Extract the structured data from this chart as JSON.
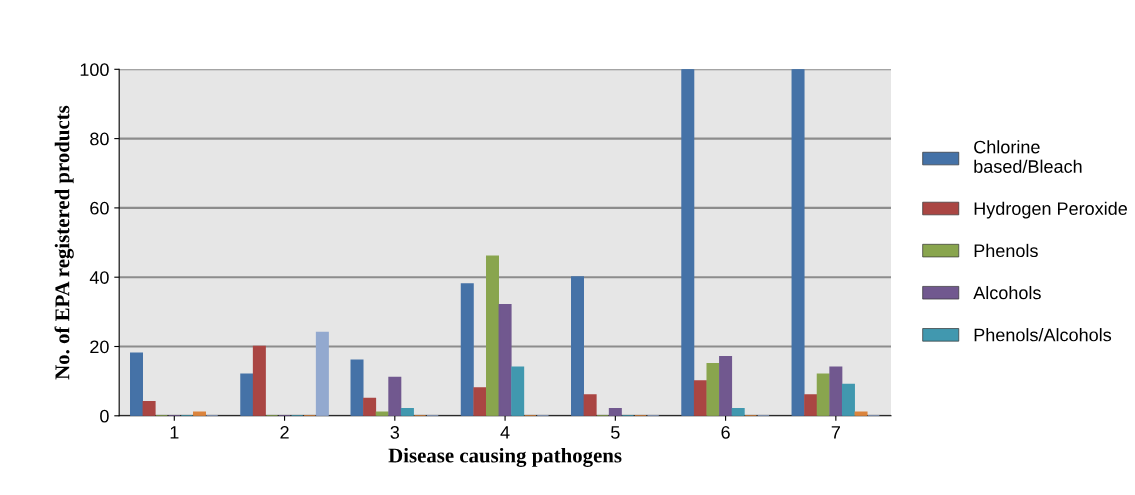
{
  "chart_data": {
    "type": "bar",
    "xlabel": "Disease causing pathogens",
    "ylabel": "No. of EPA registered products",
    "categories": [
      "1",
      "2",
      "3",
      "4",
      "5",
      "6",
      "7"
    ],
    "series": [
      {
        "name": "Chlorine based/Bleach",
        "color": "#4572a7",
        "values": [
          18,
          12,
          16,
          38,
          40,
          100,
          100
        ]
      },
      {
        "name": "Hydrogen Peroxide",
        "color": "#aa4643",
        "values": [
          4,
          20,
          5,
          8,
          6,
          10,
          6
        ]
      },
      {
        "name": "Phenols",
        "color": "#89a54e",
        "values": [
          0,
          0,
          1,
          46,
          0,
          15,
          12
        ]
      },
      {
        "name": "Alcohols",
        "color": "#71588f",
        "values": [
          0,
          0,
          11,
          32,
          2,
          17,
          14
        ]
      },
      {
        "name": "Phenols/Alcohols",
        "color": "#4198af",
        "values": [
          0,
          0,
          2,
          14,
          0,
          2,
          9
        ]
      },
      {
        "color": "#db843d",
        "values": [
          1,
          0,
          0,
          0,
          0,
          0,
          1
        ]
      },
      {
        "color": "#93a9cf",
        "values": [
          0,
          24,
          0,
          0,
          0,
          0,
          0
        ]
      }
    ],
    "ylim": [
      0,
      100
    ],
    "yticks": [
      0,
      20,
      40,
      60,
      80,
      100
    ],
    "grid": "y",
    "legend": "right"
  }
}
